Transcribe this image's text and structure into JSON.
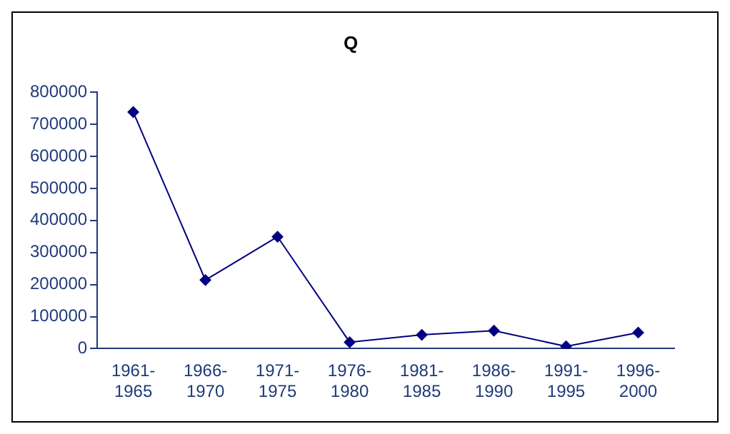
{
  "chart_data": {
    "type": "line",
    "title": "Q",
    "categories": [
      "1961-1965",
      "1966-1970",
      "1971-1975",
      "1976-1980",
      "1981-1985",
      "1986-1990",
      "1991-1995",
      "1996-2000"
    ],
    "series": [
      {
        "color": "#000080",
        "values": [
          738000,
          214000,
          349000,
          20000,
          43000,
          56000,
          7000,
          50000
        ]
      }
    ],
    "ylim": [
      0,
      800000
    ],
    "yticks": [
      0,
      100000,
      200000,
      300000,
      400000,
      500000,
      600000,
      700000,
      800000
    ],
    "grid": false,
    "legend": false,
    "marker": "diamond",
    "line_style": "solid"
  }
}
